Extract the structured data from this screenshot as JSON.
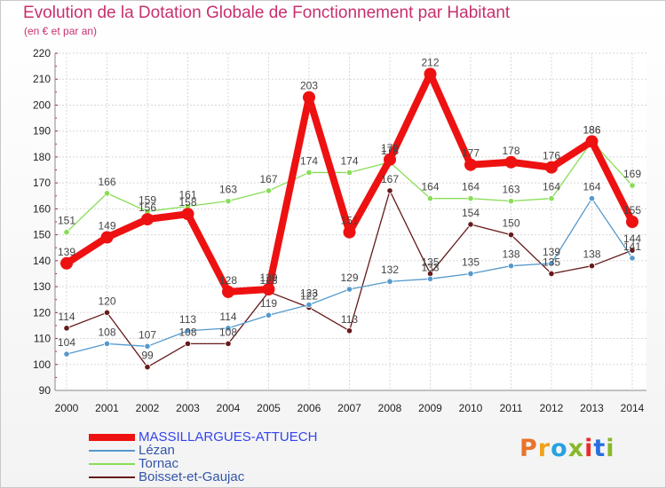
{
  "title": "Evolution de la Dotation Globale de Fonctionnement par Habitant",
  "subtitle": "(en € et par an)",
  "logo": "Proxiti",
  "logo_colors": [
    "#e8742a",
    "#f0a21c",
    "#27a3de",
    "#88b72a",
    "#ea2a2a",
    "#2a6fde",
    "#88b72a"
  ],
  "chart_data": {
    "type": "line",
    "x": [
      "2000",
      "2001",
      "2002",
      "2003",
      "2004",
      "2005",
      "2006",
      "2007",
      "2008",
      "2009",
      "2010",
      "2011",
      "2012",
      "2013",
      "2014"
    ],
    "ylim": [
      90,
      220
    ],
    "yticks": [
      90,
      100,
      110,
      120,
      130,
      140,
      150,
      160,
      170,
      180,
      190,
      200,
      210,
      220
    ],
    "grid": true,
    "legend_position": "bottom-left",
    "series": [
      {
        "name": "MASSILLARGUES-ATTUECH",
        "color": "#ee1111",
        "values": [
          139,
          149,
          156,
          158,
          128,
          129,
          203,
          151,
          179,
          212,
          177,
          178,
          176,
          186,
          155
        ]
      },
      {
        "name": "Lézan",
        "color": "#5599cc",
        "values": [
          104,
          108,
          107,
          113,
          114,
          119,
          123,
          129,
          132,
          133,
          135,
          138,
          139,
          164,
          141
        ]
      },
      {
        "name": "Tornac",
        "color": "#88dd55",
        "values": [
          151,
          166,
          159,
          161,
          163,
          167,
          174,
          174,
          178,
          164,
          164,
          163,
          164,
          186,
          169
        ]
      },
      {
        "name": "Boisset-et-Gaujac",
        "color": "#661a1a",
        "values": [
          114,
          120,
          99,
          108,
          108,
          128,
          122,
          113,
          167,
          135,
          154,
          150,
          135,
          138,
          144
        ]
      }
    ]
  }
}
